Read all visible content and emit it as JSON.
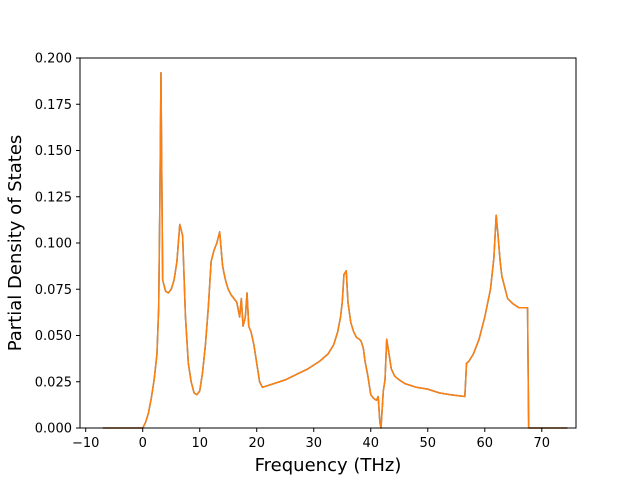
{
  "chart_data": {
    "type": "line",
    "title": "",
    "xlabel": "Frequency (THz)",
    "ylabel": "Partial Density of States",
    "xlim": [
      -11,
      76
    ],
    "ylim": [
      0.0,
      0.2
    ],
    "xticks": [
      -10,
      0,
      10,
      20,
      30,
      40,
      50,
      60,
      70
    ],
    "xtick_labels": [
      "−10",
      "0",
      "10",
      "20",
      "30",
      "40",
      "50",
      "60",
      "70"
    ],
    "yticks": [
      0.0,
      0.025,
      0.05,
      0.075,
      0.1,
      0.125,
      0.15,
      0.175,
      0.2
    ],
    "ytick_labels": [
      "0.000",
      "0.025",
      "0.050",
      "0.075",
      "0.100",
      "0.125",
      "0.150",
      "0.175",
      "0.200"
    ],
    "grid": false,
    "legend": "none",
    "series": [
      {
        "color": "#1f77b4",
        "x": [
          -7,
          0,
          0.5,
          1,
          1.5,
          2,
          2.5,
          2.8,
          3.0,
          3.2,
          3.5,
          4,
          4.5,
          5,
          5.5,
          6,
          6.5,
          7,
          7.5,
          8,
          8.5,
          9,
          9.5,
          10,
          10.5,
          11,
          11.5,
          12,
          12.5,
          13,
          13.5,
          14,
          14.3,
          14.6,
          15,
          15.5,
          16,
          16.5,
          17,
          17.3,
          17.6,
          18,
          18.3,
          18.6,
          19,
          19.5,
          20,
          20.5,
          21,
          23,
          25,
          27,
          29,
          31,
          32.5,
          33.5,
          34.2,
          34.7,
          35.0,
          35.3,
          35.7,
          36.0,
          36.5,
          37,
          37.5,
          38,
          38.3,
          38.7,
          39,
          39.5,
          40,
          40.5,
          41,
          41.3,
          41.6,
          41.8,
          42.2,
          42.5,
          42.8,
          43.2,
          43.6,
          44.2,
          45,
          46,
          48,
          50,
          52,
          54,
          56.5,
          56.8,
          57.2,
          58,
          59,
          60,
          61,
          61.6,
          62.0,
          62.3,
          62.7,
          63,
          63.5,
          64,
          65,
          66,
          67,
          67.5,
          67.7,
          68,
          69,
          74.5
        ],
        "y": [
          0.0,
          0.0,
          0.003,
          0.008,
          0.016,
          0.026,
          0.04,
          0.065,
          0.12,
          0.192,
          0.08,
          0.074,
          0.073,
          0.075,
          0.08,
          0.09,
          0.11,
          0.104,
          0.06,
          0.035,
          0.025,
          0.019,
          0.018,
          0.02,
          0.03,
          0.045,
          0.065,
          0.09,
          0.096,
          0.1,
          0.106,
          0.088,
          0.083,
          0.079,
          0.075,
          0.072,
          0.07,
          0.068,
          0.06,
          0.07,
          0.055,
          0.06,
          0.073,
          0.055,
          0.052,
          0.045,
          0.035,
          0.025,
          0.022,
          0.024,
          0.026,
          0.029,
          0.032,
          0.036,
          0.04,
          0.045,
          0.052,
          0.06,
          0.068,
          0.083,
          0.085,
          0.068,
          0.057,
          0.052,
          0.049,
          0.048,
          0.047,
          0.043,
          0.036,
          0.028,
          0.018,
          0.016,
          0.015,
          0.017,
          0.003,
          0.0,
          0.02,
          0.026,
          0.048,
          0.04,
          0.032,
          0.028,
          0.026,
          0.024,
          0.022,
          0.021,
          0.019,
          0.018,
          0.017,
          0.035,
          0.036,
          0.04,
          0.048,
          0.06,
          0.075,
          0.092,
          0.115,
          0.105,
          0.09,
          0.082,
          0.076,
          0.07,
          0.067,
          0.065,
          0.065,
          0.065,
          0.0,
          0.0,
          0.0,
          0.0
        ]
      },
      {
        "color": "#ff7f0e",
        "x": [
          -7,
          0,
          0.5,
          1,
          1.5,
          2,
          2.5,
          2.8,
          3.0,
          3.2,
          3.5,
          4,
          4.5,
          5,
          5.5,
          6,
          6.5,
          7,
          7.5,
          8,
          8.5,
          9,
          9.5,
          10,
          10.5,
          11,
          11.5,
          12,
          12.5,
          13,
          13.5,
          14,
          14.3,
          14.6,
          15,
          15.5,
          16,
          16.5,
          17,
          17.3,
          17.6,
          18,
          18.3,
          18.6,
          19,
          19.5,
          20,
          20.5,
          21,
          23,
          25,
          27,
          29,
          31,
          32.5,
          33.5,
          34.2,
          34.7,
          35.0,
          35.3,
          35.7,
          36.0,
          36.5,
          37,
          37.5,
          38,
          38.3,
          38.7,
          39,
          39.5,
          40,
          40.5,
          41,
          41.3,
          41.6,
          41.8,
          42.2,
          42.5,
          42.8,
          43.2,
          43.6,
          44.2,
          45,
          46,
          48,
          50,
          52,
          54,
          56.5,
          56.8,
          57.2,
          58,
          59,
          60,
          61,
          61.6,
          62.0,
          62.3,
          62.7,
          63,
          63.5,
          64,
          65,
          66,
          67,
          67.5,
          67.7,
          68,
          69,
          74.5
        ],
        "y": [
          0.0,
          0.0,
          0.003,
          0.008,
          0.016,
          0.026,
          0.04,
          0.065,
          0.12,
          0.192,
          0.08,
          0.074,
          0.073,
          0.075,
          0.08,
          0.09,
          0.11,
          0.104,
          0.06,
          0.035,
          0.025,
          0.019,
          0.018,
          0.02,
          0.03,
          0.045,
          0.065,
          0.09,
          0.096,
          0.1,
          0.106,
          0.088,
          0.083,
          0.079,
          0.075,
          0.072,
          0.07,
          0.068,
          0.06,
          0.07,
          0.055,
          0.06,
          0.073,
          0.055,
          0.052,
          0.045,
          0.035,
          0.025,
          0.022,
          0.024,
          0.026,
          0.029,
          0.032,
          0.036,
          0.04,
          0.045,
          0.052,
          0.06,
          0.068,
          0.083,
          0.085,
          0.068,
          0.057,
          0.052,
          0.049,
          0.048,
          0.047,
          0.043,
          0.036,
          0.028,
          0.018,
          0.016,
          0.015,
          0.017,
          0.003,
          0.0,
          0.02,
          0.026,
          0.048,
          0.04,
          0.032,
          0.028,
          0.026,
          0.024,
          0.022,
          0.021,
          0.019,
          0.018,
          0.017,
          0.035,
          0.036,
          0.04,
          0.048,
          0.06,
          0.075,
          0.092,
          0.115,
          0.105,
          0.09,
          0.082,
          0.076,
          0.07,
          0.067,
          0.065,
          0.065,
          0.065,
          0.0,
          0.0,
          0.0,
          0.0
        ]
      }
    ]
  }
}
